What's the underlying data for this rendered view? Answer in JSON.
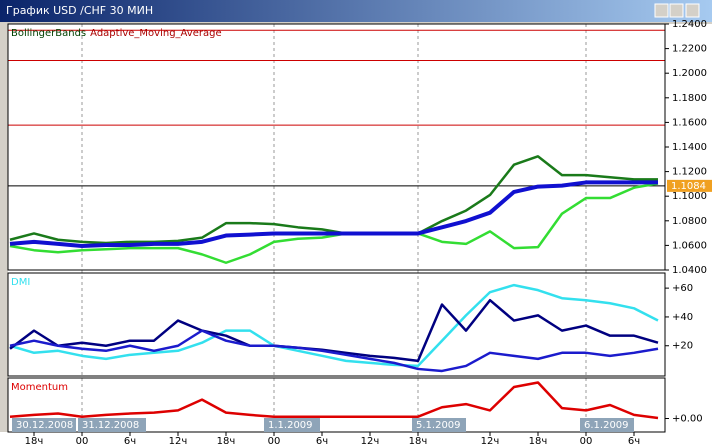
{
  "window": {
    "title": "График USD /CHF 30 МИН"
  },
  "chart_data": [
    {
      "type": "line",
      "ylim": [
        1.04,
        1.24
      ],
      "yticks": [
        {
          "value": 1.04,
          "label": "1.0400"
        },
        {
          "value": 1.06,
          "label": "1.0600"
        },
        {
          "value": 1.08,
          "label": "1.0800"
        },
        {
          "value": 1.1,
          "label": "1.1000"
        },
        {
          "value": 1.12,
          "label": "1.1200"
        },
        {
          "value": 1.14,
          "label": "1.1400"
        },
        {
          "value": 1.16,
          "label": "1.1600"
        },
        {
          "value": 1.18,
          "label": "1.1800"
        },
        {
          "value": 1.2,
          "label": "1.2000"
        },
        {
          "value": 1.22,
          "label": "1.2200"
        },
        {
          "value": 1.24,
          "label": "1.2400"
        }
      ],
      "hlines": [
        1.2349,
        1.2103,
        1.1578
      ],
      "hline_color": "#cc0000",
      "current": 1.1084,
      "series": [
        {
          "name": "BollingerBands",
          "color": "#1a7a1a",
          "values": [
            1.0646,
            1.0697,
            1.0646,
            1.0629,
            1.062,
            1.0629,
            1.0629,
            1.0637,
            1.0663,
            1.0781,
            1.0781,
            1.0773,
            1.0747,
            1.073,
            1.0697,
            1.0697,
            1.0697,
            1.0697,
            1.0798,
            1.0883,
            1.101,
            1.1256,
            1.1324,
            1.1171,
            1.1171,
            1.1154,
            1.1137,
            1.1137
          ]
        },
        {
          "color": "#33dd33",
          "values": [
            1.0595,
            1.0561,
            1.0544,
            1.0561,
            1.0569,
            1.0578,
            1.0578,
            1.0578,
            1.0527,
            1.0459,
            1.0527,
            1.0629,
            1.0654,
            1.0663,
            1.0697,
            1.0697,
            1.0697,
            1.0697,
            1.0629,
            1.0612,
            1.0714,
            1.0578,
            1.0586,
            1.0858,
            1.0985,
            1.0985,
            1.1069,
            1.1103
          ]
        },
        {
          "name": "Adaptive_Moving_Average",
          "color": "#1010d0",
          "values": [
            1.0612,
            1.0629,
            1.0612,
            1.0595,
            1.0603,
            1.0603,
            1.0612,
            1.0612,
            1.0629,
            1.068,
            1.0688,
            1.0697,
            1.0697,
            1.0697,
            1.0697,
            1.0697,
            1.0697,
            1.0697,
            1.0747,
            1.0798,
            1.0866,
            1.1035,
            1.1078,
            1.1086,
            1.1112,
            1.1112,
            1.1112,
            1.1112
          ]
        }
      ]
    },
    {
      "type": "line",
      "title": "DMI",
      "ylim": [
        -1,
        70.5
      ],
      "yticks": [
        {
          "value": 60,
          "label": "+60"
        },
        {
          "value": 40,
          "label": "+40"
        },
        {
          "value": 20,
          "label": "+20"
        }
      ],
      "series": [
        {
          "color": "#33e0ee",
          "values": [
            20,
            15.1,
            16.5,
            13,
            10.9,
            13.7,
            15.1,
            16.5,
            22.1,
            30.5,
            30.5,
            20,
            16.5,
            13,
            9.5,
            8.1,
            6.7,
            6,
            23.5,
            41.1,
            57.2,
            62.1,
            58.6,
            53,
            51.6,
            49.5,
            46,
            37.5
          ]
        },
        {
          "color": "#000080",
          "values": [
            17.9,
            30.5,
            20,
            22.1,
            20,
            23.5,
            23.5,
            37.5,
            30.5,
            27,
            20,
            20,
            18.6,
            17.2,
            15.1,
            13,
            11.6,
            9.5,
            48.6,
            30.5,
            51.6,
            37.5,
            41.1,
            30.5,
            34,
            27,
            27,
            22.1
          ]
        },
        {
          "color": "#1b1bcc",
          "values": [
            20,
            23.5,
            20,
            17.9,
            16.5,
            20,
            16.5,
            20,
            30.5,
            23.5,
            20,
            20,
            18.6,
            16.5,
            13.7,
            10.9,
            8.1,
            3.9,
            2.5,
            6,
            15.1,
            13,
            10.9,
            15.1,
            15.1,
            13,
            15.1,
            17.9
          ]
        }
      ]
    },
    {
      "type": "line",
      "title": "Momentum",
      "ylim": [
        -3,
        9
      ],
      "yticks": [
        {
          "value": 0,
          "label": "+0.00"
        }
      ],
      "categories": [
        null,
        "18ч",
        null,
        "00",
        null,
        "6ч",
        null,
        "12ч",
        null,
        "18ч",
        null,
        "00",
        null,
        "6ч",
        null,
        "12ч",
        null,
        "18ч",
        null,
        null,
        "12ч",
        null,
        "18ч",
        null,
        "00",
        null,
        "6ч",
        null
      ],
      "date_labels": [
        "30.12.2008",
        "31.12.2008",
        "1.1.2009",
        "5.1.2009",
        "6.1.2009"
      ],
      "series": [
        {
          "color": "#dd0000",
          "values": [
            0.4,
            0.8,
            1.1,
            0.4,
            0.8,
            1.1,
            1.3,
            1.8,
            4.2,
            1.3,
            0.8,
            0.4,
            0.4,
            0.4,
            0.4,
            0.4,
            0.4,
            0.4,
            2.5,
            3.2,
            1.8,
            7,
            8,
            2.3,
            1.8,
            3,
            0.8,
            0.1
          ]
        }
      ]
    }
  ]
}
